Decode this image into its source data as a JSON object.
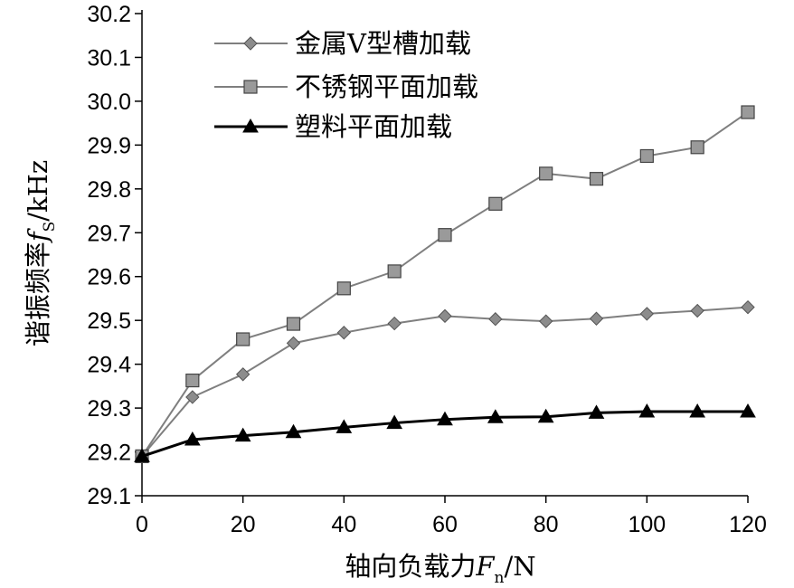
{
  "chart_data": {
    "type": "line",
    "xlabel": "轴向负载力",
    "xlabel_symbol": "F",
    "xlabel_sub": "n",
    "xlabel_unit": "/N",
    "ylabel": "谐振频率",
    "ylabel_symbol": "f",
    "ylabel_sub": "S",
    "ylabel_unit": "/kHz",
    "xlim": [
      0,
      120
    ],
    "ylim": [
      29.1,
      30.2
    ],
    "xticks": [
      0,
      20,
      40,
      60,
      80,
      100,
      120
    ],
    "yticks": [
      29.1,
      29.2,
      29.3,
      29.4,
      29.5,
      29.6,
      29.7,
      29.8,
      29.9,
      30.0,
      30.1,
      30.2
    ],
    "ytick_labels": [
      "29.1",
      "29.2",
      "29.3",
      "29.4",
      "29.5",
      "29.6",
      "29.7",
      "29.8",
      "29.9",
      "30.0",
      "30.1",
      "30.2"
    ],
    "grid": false,
    "legend_position": "top-left",
    "x": [
      0,
      10,
      20,
      30,
      40,
      50,
      60,
      70,
      80,
      90,
      100,
      110,
      120
    ],
    "series": [
      {
        "name": "金属V型槽加载",
        "marker": "diamond",
        "color": "#7f7f7f",
        "values": [
          29.19,
          29.325,
          29.377,
          29.448,
          29.472,
          29.493,
          29.51,
          29.503,
          29.498,
          29.504,
          29.515,
          29.522,
          29.53
        ]
      },
      {
        "name": "不锈钢平面加载",
        "marker": "square",
        "color": "#7f7f7f",
        "values": [
          29.19,
          29.363,
          29.457,
          29.492,
          29.573,
          29.612,
          29.695,
          29.766,
          29.835,
          29.823,
          29.875,
          29.895,
          29.975
        ]
      },
      {
        "name": "塑料平面加载",
        "marker": "triangle",
        "color": "#000000",
        "values": [
          29.19,
          29.228,
          29.237,
          29.245,
          29.256,
          29.266,
          29.274,
          29.279,
          29.28,
          29.289,
          29.292,
          29.292,
          29.292
        ]
      }
    ]
  }
}
